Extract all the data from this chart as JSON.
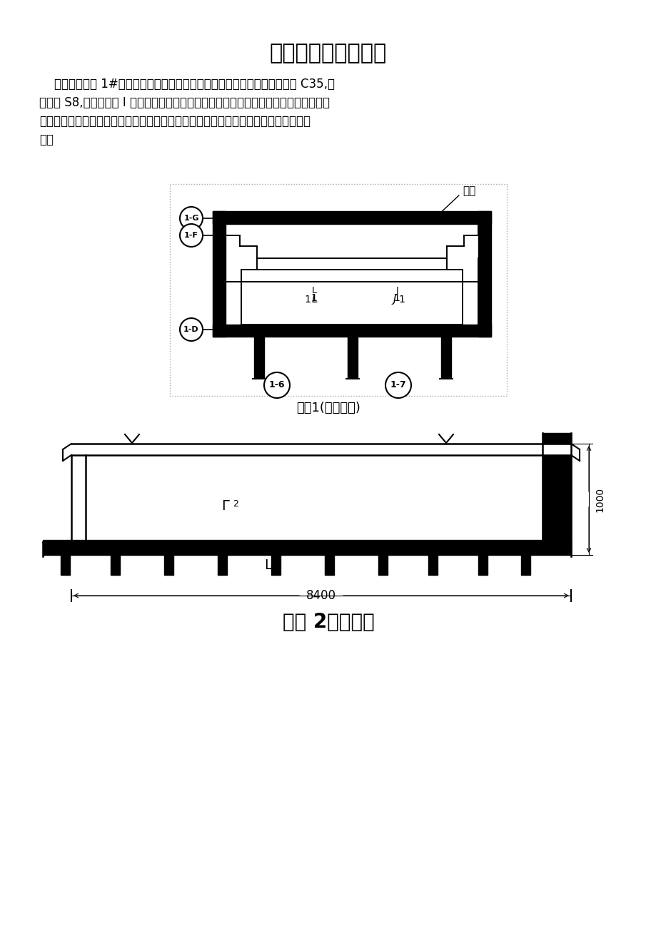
{
  "title": "地下室试水施工方案",
  "para_lines": [
    "    七星四季花园 1#楼工程，地下二层设计采用防水密实性混凝土，强度等级 C35,抗",
    "渗等级 S8,防水等级为 I 级。我项目部按照设计及《地下工程防水技术规范》施工。现地",
    "下室工程主体已施工完毕，我项目部拟采用局部试水方案进行试水检测，试水部位见下",
    "图："
  ],
  "caption1": "部位1(三号口部)",
  "caption2": "部位 2（外墙）",
  "bg_color": "#ffffff",
  "text_color": "#000000"
}
